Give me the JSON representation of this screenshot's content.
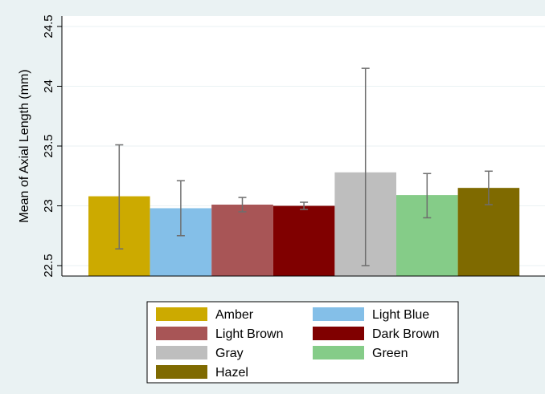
{
  "chart_data": {
    "type": "bar",
    "title": "",
    "xlabel": "",
    "ylabel": "Mean of Axial Length (mm)",
    "ylim": [
      22.5,
      24.5
    ],
    "yticks": [
      22.5,
      23,
      23.5,
      24,
      24.5
    ],
    "ytick_labels": [
      "22.5",
      "23",
      "23.5",
      "24",
      "24.5"
    ],
    "grid": true,
    "legend_position": "bottom",
    "categories": [
      "Amber",
      "Light Blue",
      "Light Brown",
      "Dark Brown",
      "Gray",
      "Green",
      "Hazel"
    ],
    "series": [
      {
        "name": "Amber",
        "color": "#ccaa00",
        "value": 23.08,
        "error_low": 22.64,
        "error_high": 23.51
      },
      {
        "name": "Light Blue",
        "color": "#84bfe8",
        "value": 22.98,
        "error_low": 22.75,
        "error_high": 23.21
      },
      {
        "name": "Light Brown",
        "color": "#a85556",
        "value": 23.01,
        "error_low": 22.95,
        "error_high": 23.07
      },
      {
        "name": "Dark Brown",
        "color": "#800000",
        "value": 23.0,
        "error_low": 22.97,
        "error_high": 23.03
      },
      {
        "name": "Gray",
        "color": "#bebebe",
        "value": 23.28,
        "error_low": 22.5,
        "error_high": 24.15
      },
      {
        "name": "Green",
        "color": "#85cc88",
        "value": 23.09,
        "error_low": 22.9,
        "error_high": 23.27
      },
      {
        "name": "Hazel",
        "color": "#7f6a00",
        "value": 23.15,
        "error_low": 23.01,
        "error_high": 23.29
      }
    ]
  }
}
